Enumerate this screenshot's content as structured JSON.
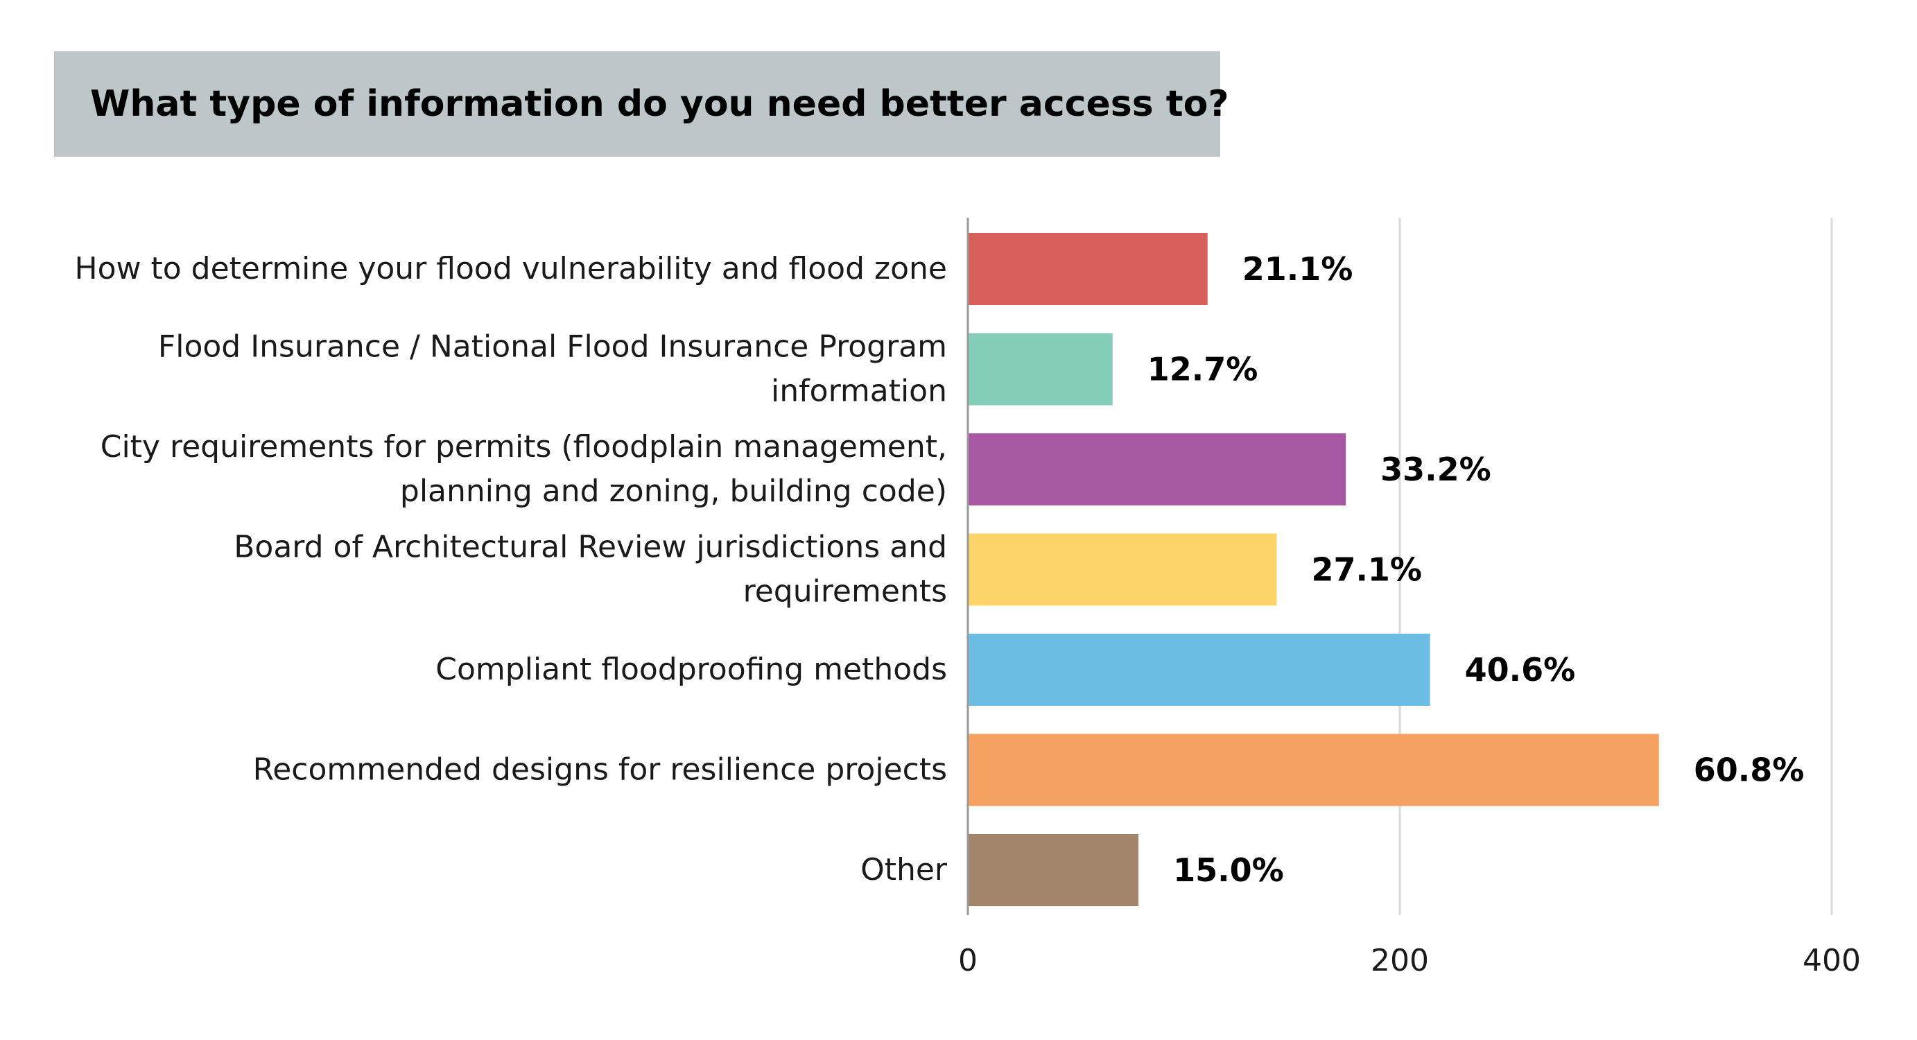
{
  "chart_data": {
    "type": "bar",
    "orientation": "horizontal",
    "title": "What type of information do you need better access to?",
    "categories": [
      [
        "How to determine your flood vulnerability and flood zone"
      ],
      [
        "Flood Insurance / National Flood Insurance Program",
        "information"
      ],
      [
        "City requirements for permits (floodplain management,",
        "planning and zoning, building code)"
      ],
      [
        "Board of Architectural Review jurisdictions and",
        "requirements"
      ],
      [
        "Compliant floodproofing methods"
      ],
      [
        "Recommended designs for resilience projects"
      ],
      [
        "Other"
      ]
    ],
    "values": [
      111,
      67,
      175,
      143,
      214,
      320,
      79
    ],
    "value_labels": [
      "21.1%",
      "12.7%",
      "33.2%",
      "27.1%",
      "40.6%",
      "60.8%",
      "15.0%"
    ],
    "colors": [
      "#d9605a",
      "#84cdb8",
      "#a758a3",
      "#fdd468",
      "#6bbde4",
      "#f5a162",
      "#a3856c"
    ],
    "xlim": [
      0,
      400
    ],
    "xticks": [
      0,
      200,
      400
    ],
    "xlabel": "",
    "ylabel": "",
    "grid": "vertical",
    "legend": "none"
  }
}
